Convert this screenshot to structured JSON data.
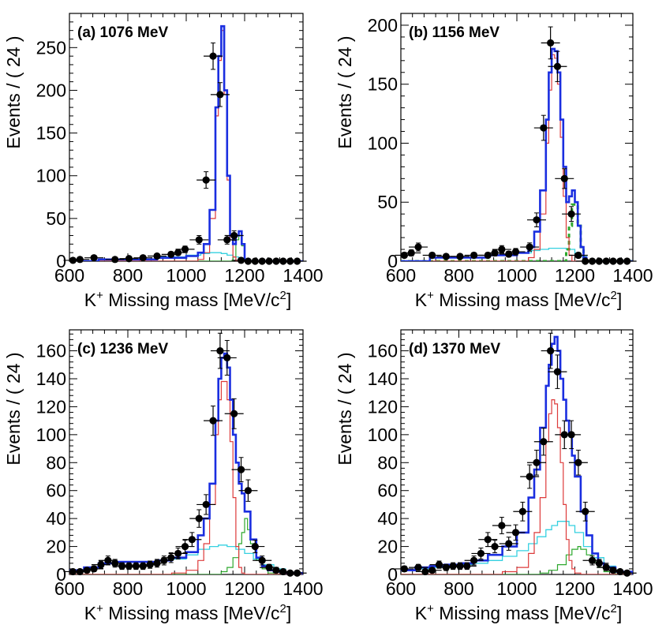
{
  "axis_labels": {
    "x": "K",
    "x_sup": "+",
    "x_rest": " Missing mass [MeV/c",
    "x_sup2": "2",
    "x_end": "]",
    "y": "Events / ( 24 )"
  },
  "colors": {
    "total": "#1a2ee0",
    "lambda": "#dd3a3a",
    "sigma0": "#2ea82e",
    "sigma0_dashed": "#2ea82e",
    "background": "#35d0e0",
    "data": "#000000"
  },
  "chart_data": [
    {
      "type": "histogram",
      "title": "(a) 1076 MeV",
      "xlabel": "K+ Missing mass [MeV/c2]",
      "ylabel": "Events / ( 24 )",
      "xlim": [
        600,
        1400
      ],
      "ylim": [
        0,
        290
      ],
      "xticks": [
        600,
        800,
        1000,
        1200,
        1400
      ],
      "yticks": [
        0,
        50,
        100,
        150,
        200,
        250
      ],
      "data_points": {
        "x": [
          612,
          636,
          684,
          756,
          804,
          852,
          900,
          948,
          972,
          996,
          1044,
          1068,
          1092,
          1116,
          1140,
          1164,
          1188,
          1212,
          1236,
          1260,
          1284,
          1308,
          1332,
          1356,
          1380
        ],
        "y": [
          1,
          2,
          4,
          2,
          3,
          4,
          6,
          8,
          10,
          14,
          25,
          95,
          240,
          195,
          25,
          30,
          1,
          0,
          0,
          0,
          0,
          0,
          0,
          0,
          0
        ],
        "yerr": [
          1,
          1.4,
          2,
          1.4,
          1.7,
          2,
          2.4,
          2.8,
          3.2,
          3.7,
          5,
          9.7,
          15.5,
          14,
          5,
          5.5,
          1,
          0,
          0,
          0,
          0,
          0,
          0,
          0,
          0
        ]
      },
      "series": [
        {
          "name": "total",
          "x": [
            600,
            700,
            900,
            1000,
            1040,
            1060,
            1080,
            1100,
            1110,
            1120,
            1130,
            1140,
            1150,
            1160,
            1170,
            1180,
            1190,
            1200,
            1210,
            1300,
            1400
          ],
          "y": [
            0,
            2,
            4,
            6,
            10,
            20,
            60,
            180,
            240,
            275,
            200,
            100,
            30,
            20,
            30,
            35,
            20,
            0,
            0,
            0,
            0
          ]
        },
        {
          "name": "lambda",
          "x": [
            600,
            1000,
            1040,
            1060,
            1080,
            1100,
            1110,
            1120,
            1130,
            1140,
            1150,
            1160,
            1170,
            1180,
            1400
          ],
          "y": [
            0,
            0,
            2,
            10,
            50,
            170,
            235,
            270,
            195,
            95,
            25,
            5,
            0,
            0,
            0
          ]
        },
        {
          "name": "sigma0",
          "x": [
            600,
            1150,
            1160,
            1170,
            1180,
            1190,
            1200,
            1210,
            1400
          ],
          "y": [
            0,
            0,
            5,
            25,
            30,
            18,
            2,
            0,
            0
          ]
        },
        {
          "name": "background",
          "x": [
            600,
            700,
            900,
            1000,
            1050,
            1080,
            1100,
            1120,
            1140,
            1160,
            1180,
            1190,
            1200,
            1400
          ],
          "y": [
            0,
            2,
            5,
            7,
            9,
            10,
            10,
            9,
            7,
            5,
            3,
            1,
            0,
            0
          ]
        }
      ]
    },
    {
      "type": "histogram",
      "title": "(b) 1156 MeV",
      "xlabel": "K+ Missing mass [MeV/c2]",
      "ylabel": "Events / ( 24 )",
      "xlim": [
        600,
        1400
      ],
      "ylim": [
        0,
        210
      ],
      "xticks": [
        600,
        800,
        1000,
        1200,
        1400
      ],
      "yticks": [
        0,
        50,
        100,
        150,
        200
      ],
      "data_points": {
        "x": [
          612,
          636,
          660,
          708,
          756,
          804,
          852,
          900,
          924,
          948,
          972,
          996,
          1044,
          1068,
          1092,
          1116,
          1140,
          1164,
          1188,
          1212,
          1236,
          1260,
          1284,
          1308,
          1332,
          1356,
          1380
        ],
        "y": [
          5,
          7,
          12,
          5,
          4,
          4,
          5,
          5,
          7,
          10,
          6,
          8,
          12,
          35,
          113,
          185,
          165,
          70,
          40,
          5,
          0,
          0,
          0,
          0,
          0,
          0,
          0
        ],
        "yerr": [
          2.2,
          2.6,
          3.4,
          2.2,
          2,
          2,
          2.2,
          2.2,
          2.6,
          3.2,
          2.4,
          2.8,
          3.5,
          5.9,
          10.6,
          13.6,
          12.8,
          8.4,
          6.3,
          2.2,
          0,
          0,
          0,
          0,
          0,
          0,
          0
        ]
      },
      "series": [
        {
          "name": "total",
          "x": [
            600,
            700,
            900,
            1000,
            1040,
            1060,
            1080,
            1100,
            1110,
            1120,
            1130,
            1140,
            1150,
            1160,
            1170,
            1180,
            1190,
            1200,
            1210,
            1220,
            1230,
            1240,
            1400
          ],
          "y": [
            0,
            3,
            5,
            7,
            12,
            25,
            60,
            120,
            160,
            180,
            178,
            160,
            120,
            80,
            50,
            55,
            60,
            50,
            30,
            12,
            3,
            0,
            0
          ]
        },
        {
          "name": "lambda",
          "x": [
            600,
            1000,
            1040,
            1060,
            1080,
            1100,
            1110,
            1120,
            1130,
            1140,
            1150,
            1160,
            1170,
            1180,
            1190,
            1400
          ],
          "y": [
            0,
            0,
            3,
            10,
            40,
            100,
            145,
            175,
            172,
            150,
            105,
            55,
            20,
            5,
            0,
            0
          ]
        },
        {
          "name": "sigma0",
          "x": [
            600,
            1160,
            1170,
            1180,
            1190,
            1200,
            1210,
            1220,
            1230,
            1240,
            1400
          ],
          "y": [
            0,
            0,
            10,
            30,
            48,
            48,
            30,
            12,
            3,
            0,
            0
          ]
        },
        {
          "name": "background",
          "x": [
            600,
            700,
            900,
            1000,
            1050,
            1080,
            1110,
            1140,
            1170,
            1200,
            1220,
            1240,
            1400
          ],
          "y": [
            0,
            3,
            5,
            7,
            9,
            10,
            11,
            11,
            10,
            7,
            4,
            0,
            0
          ]
        }
      ]
    },
    {
      "type": "histogram",
      "title": "(c) 1236 MeV",
      "xlabel": "K+ Missing mass [MeV/c2]",
      "ylabel": "Events / ( 24 )",
      "xlim": [
        600,
        1400
      ],
      "ylim": [
        0,
        175
      ],
      "xticks": [
        600,
        800,
        1000,
        1200,
        1400
      ],
      "yticks": [
        0,
        20,
        40,
        60,
        80,
        100,
        120,
        140,
        160
      ],
      "data_points": {
        "x": [
          612,
          636,
          660,
          684,
          708,
          732,
          756,
          780,
          804,
          828,
          852,
          876,
          900,
          924,
          948,
          972,
          996,
          1020,
          1044,
          1068,
          1092,
          1116,
          1140,
          1164,
          1188,
          1212,
          1236,
          1260,
          1284,
          1308,
          1332,
          1356,
          1380
        ],
        "y": [
          2,
          2,
          3,
          4,
          7,
          10,
          8,
          6,
          6,
          6,
          6,
          7,
          8,
          10,
          12,
          15,
          20,
          25,
          40,
          50,
          110,
          160,
          155,
          115,
          75,
          60,
          20,
          10,
          5,
          3,
          2,
          1,
          1
        ],
        "yerr": [
          1.4,
          1.4,
          1.7,
          2,
          2.6,
          3.2,
          2.8,
          2.4,
          2.4,
          2.4,
          2.4,
          2.6,
          2.8,
          3.2,
          3.5,
          3.9,
          4.5,
          5,
          6.3,
          7.1,
          10.5,
          12.6,
          12.4,
          10.7,
          8.7,
          7.7,
          4.5,
          3.2,
          2.2,
          1.7,
          1.4,
          1,
          1
        ]
      },
      "series": [
        {
          "name": "total",
          "x": [
            600,
            650,
            700,
            750,
            800,
            850,
            900,
            950,
            1000,
            1040,
            1060,
            1080,
            1100,
            1110,
            1120,
            1130,
            1140,
            1150,
            1160,
            1170,
            1180,
            1190,
            1200,
            1220,
            1240,
            1260,
            1280,
            1300,
            1340,
            1400
          ],
          "y": [
            3,
            5,
            8,
            9,
            9,
            9,
            10,
            12,
            16,
            28,
            40,
            65,
            110,
            140,
            155,
            158,
            148,
            125,
            100,
            80,
            65,
            58,
            45,
            25,
            12,
            6,
            3,
            2,
            1,
            0
          ]
        },
        {
          "name": "lambda",
          "x": [
            600,
            900,
            950,
            1000,
            1040,
            1060,
            1080,
            1100,
            1110,
            1120,
            1130,
            1140,
            1150,
            1160,
            1170,
            1180,
            1190,
            1200,
            1400
          ],
          "y": [
            0,
            0,
            1,
            3,
            10,
            22,
            50,
            100,
            125,
            138,
            138,
            125,
            95,
            55,
            20,
            5,
            1,
            0,
            0
          ]
        },
        {
          "name": "sigma0",
          "x": [
            600,
            1100,
            1120,
            1140,
            1160,
            1180,
            1190,
            1200,
            1210,
            1220,
            1240,
            1260,
            1280,
            1300,
            1400
          ],
          "y": [
            0,
            0,
            2,
            5,
            12,
            22,
            30,
            40,
            32,
            22,
            10,
            4,
            1,
            0,
            0
          ]
        },
        {
          "name": "background",
          "x": [
            600,
            650,
            700,
            750,
            800,
            850,
            900,
            950,
            1000,
            1040,
            1080,
            1110,
            1140,
            1170,
            1200,
            1230,
            1260,
            1300,
            1340,
            1400
          ],
          "y": [
            3,
            5,
            8,
            9,
            9,
            9,
            10,
            11,
            14,
            18,
            20,
            21,
            20,
            18,
            15,
            11,
            7,
            4,
            1,
            0
          ]
        }
      ]
    },
    {
      "type": "histogram",
      "title": "(d) 1370 MeV",
      "xlabel": "K+ Missing mass [MeV/c2]",
      "ylabel": "Events / ( 24 )",
      "xlim": [
        600,
        1400
      ],
      "ylim": [
        0,
        175
      ],
      "xticks": [
        600,
        800,
        1000,
        1200,
        1400
      ],
      "yticks": [
        0,
        20,
        40,
        60,
        80,
        100,
        120,
        140,
        160
      ],
      "data_points": {
        "x": [
          612,
          660,
          684,
          708,
          732,
          756,
          780,
          804,
          828,
          852,
          876,
          900,
          924,
          948,
          972,
          996,
          1020,
          1044,
          1068,
          1092,
          1116,
          1140,
          1164,
          1188,
          1212,
          1236,
          1260,
          1284,
          1308,
          1332,
          1356,
          1380
        ],
        "y": [
          4,
          5,
          2,
          3,
          7,
          5,
          6,
          6,
          6,
          10,
          15,
          25,
          20,
          35,
          22,
          30,
          45,
          70,
          80,
          95,
          160,
          145,
          100,
          100,
          80,
          45,
          10,
          8,
          5,
          3,
          2,
          1
        ],
        "yerr": [
          2,
          2.2,
          1.4,
          1.7,
          2.6,
          2.2,
          2.4,
          2.4,
          2.4,
          3.2,
          3.9,
          5,
          4.5,
          5.9,
          4.7,
          5.5,
          6.7,
          8.4,
          8.9,
          9.7,
          12.6,
          12,
          10,
          10,
          8.9,
          6.7,
          3.2,
          2.8,
          2.2,
          1.7,
          1.4,
          1
        ]
      },
      "series": [
        {
          "name": "total",
          "x": [
            600,
            650,
            700,
            750,
            800,
            850,
            900,
            950,
            1000,
            1040,
            1060,
            1080,
            1100,
            1110,
            1120,
            1130,
            1140,
            1150,
            1160,
            1170,
            1180,
            1190,
            1200,
            1220,
            1240,
            1260,
            1280,
            1300,
            1340,
            1400
          ],
          "y": [
            3,
            5,
            6,
            7,
            8,
            10,
            14,
            20,
            30,
            55,
            75,
            105,
            135,
            150,
            165,
            170,
            160,
            140,
            125,
            110,
            100,
            85,
            70,
            45,
            28,
            15,
            8,
            5,
            2,
            0
          ]
        },
        {
          "name": "lambda",
          "x": [
            600,
            900,
            950,
            1000,
            1040,
            1060,
            1080,
            1100,
            1110,
            1120,
            1130,
            1140,
            1150,
            1160,
            1170,
            1180,
            1190,
            1200,
            1220,
            1400
          ],
          "y": [
            0,
            0,
            2,
            5,
            15,
            30,
            55,
            95,
            115,
            125,
            122,
            105,
            80,
            50,
            25,
            10,
            4,
            1,
            0,
            0
          ]
        },
        {
          "name": "sigma0",
          "x": [
            600,
            1050,
            1080,
            1110,
            1140,
            1170,
            1190,
            1210,
            1220,
            1240,
            1260,
            1280,
            1300,
            1340,
            1400
          ],
          "y": [
            0,
            0,
            1,
            3,
            7,
            14,
            18,
            20,
            18,
            14,
            9,
            5,
            2,
            0,
            0
          ]
        },
        {
          "name": "background",
          "x": [
            600,
            650,
            700,
            750,
            800,
            850,
            900,
            950,
            1000,
            1040,
            1070,
            1100,
            1120,
            1140,
            1160,
            1180,
            1200,
            1230,
            1260,
            1300,
            1340,
            1400
          ],
          "y": [
            3,
            4,
            5,
            6,
            7,
            8,
            10,
            13,
            17,
            22,
            27,
            32,
            35,
            38,
            38,
            35,
            30,
            20,
            12,
            6,
            2,
            0
          ]
        }
      ]
    }
  ]
}
